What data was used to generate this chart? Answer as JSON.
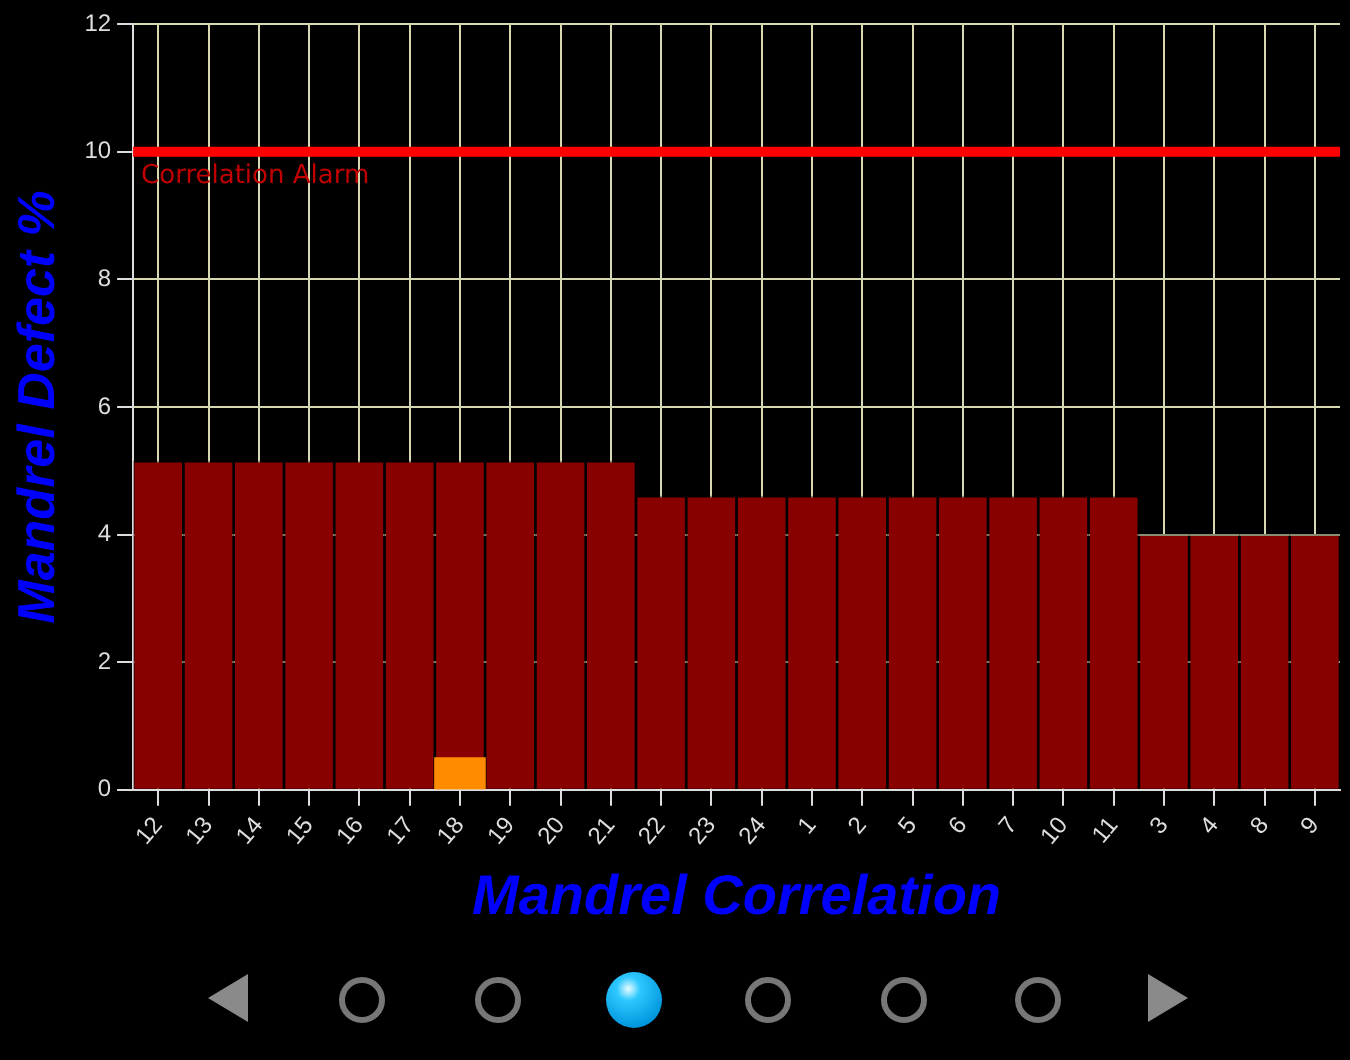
{
  "chart_data": {
    "type": "bar",
    "xlabel": "Mandrel Correlation",
    "ylabel": "Mandrel Defect %",
    "categories": [
      "12",
      "13",
      "14",
      "15",
      "16",
      "17",
      "18",
      "19",
      "20",
      "21",
      "22",
      "23",
      "24",
      "1",
      "2",
      "5",
      "6",
      "7",
      "10",
      "11",
      "3",
      "4",
      "8",
      "9"
    ],
    "series": [
      {
        "color": "#880000",
        "values": [
          5.15,
          5.15,
          5.15,
          5.15,
          5.15,
          5.15,
          5.15,
          5.15,
          5.15,
          5.15,
          4.6,
          4.6,
          4.6,
          4.6,
          4.6,
          4.6,
          4.6,
          4.6,
          4.6,
          4.6,
          4.0,
          4.0,
          4.0,
          4.0
        ]
      },
      {
        "color": "#ff8c00",
        "values": [
          null,
          null,
          null,
          null,
          null,
          null,
          0.5,
          null,
          null,
          null,
          null,
          null,
          null,
          null,
          null,
          null,
          null,
          null,
          null,
          null,
          null,
          null,
          null,
          null
        ]
      }
    ],
    "ylim": [
      0,
      12
    ],
    "yticks": [
      0,
      2,
      4,
      6,
      8,
      10,
      12
    ],
    "grid": true,
    "ref_lines": [
      {
        "axis": "y",
        "value": 10,
        "label": "Correlation Alarm",
        "color": "#ff0000"
      }
    ]
  }
}
